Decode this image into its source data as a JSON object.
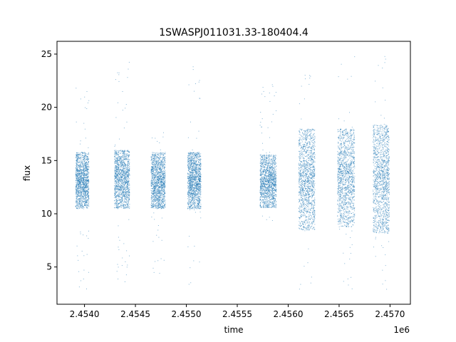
{
  "chart_data": {
    "type": "scatter",
    "title": "1SWASPJ011031.33-180404.4",
    "xlabel": "time",
    "ylabel": "flux",
    "x_offset_label": "1e6",
    "x_tick_labels": [
      "2.4540",
      "2.4545",
      "2.4550",
      "2.4555",
      "2.4560",
      "2.4565",
      "2.4570"
    ],
    "x_ticks": [
      2454000,
      2454500,
      2455000,
      2455500,
      2456000,
      2456500,
      2457000
    ],
    "y_tick_labels": [
      "5",
      "10",
      "15",
      "20",
      "25"
    ],
    "y_ticks": [
      5,
      10,
      15,
      20,
      25
    ],
    "xlim": [
      2453730,
      2457200
    ],
    "ylim": [
      1.5,
      26.2
    ],
    "grid": false,
    "marker_color": "#1f77b4",
    "observing_seasons": [
      {
        "x_start": 2453910,
        "x_end": 2454040,
        "y_low": 10.5,
        "y_high": 15.8,
        "y_min": 2.9,
        "y_max": 23.0
      },
      {
        "x_start": 2454290,
        "x_end": 2454440,
        "y_low": 10.5,
        "y_high": 16.0,
        "y_min": 3.0,
        "y_max": 24.7
      },
      {
        "x_start": 2454650,
        "x_end": 2454790,
        "y_low": 10.5,
        "y_high": 15.8,
        "y_min": 4.1,
        "y_max": 18.0
      },
      {
        "x_start": 2455010,
        "x_end": 2455140,
        "y_low": 10.5,
        "y_high": 15.8,
        "y_min": 3.3,
        "y_max": 24.0
      },
      {
        "x_start": 2455720,
        "x_end": 2455880,
        "y_low": 10.6,
        "y_high": 15.6,
        "y_min": 8.2,
        "y_max": 22.4
      },
      {
        "x_start": 2456100,
        "x_end": 2456260,
        "y_low": 8.5,
        "y_high": 18.0,
        "y_min": 2.6,
        "y_max": 25.0
      },
      {
        "x_start": 2456480,
        "x_end": 2456650,
        "y_low": 8.8,
        "y_high": 18.0,
        "y_min": 2.7,
        "y_max": 25.0
      },
      {
        "x_start": 2456830,
        "x_end": 2456990,
        "y_low": 8.2,
        "y_high": 18.4,
        "y_min": 2.8,
        "y_max": 25.0
      }
    ]
  }
}
